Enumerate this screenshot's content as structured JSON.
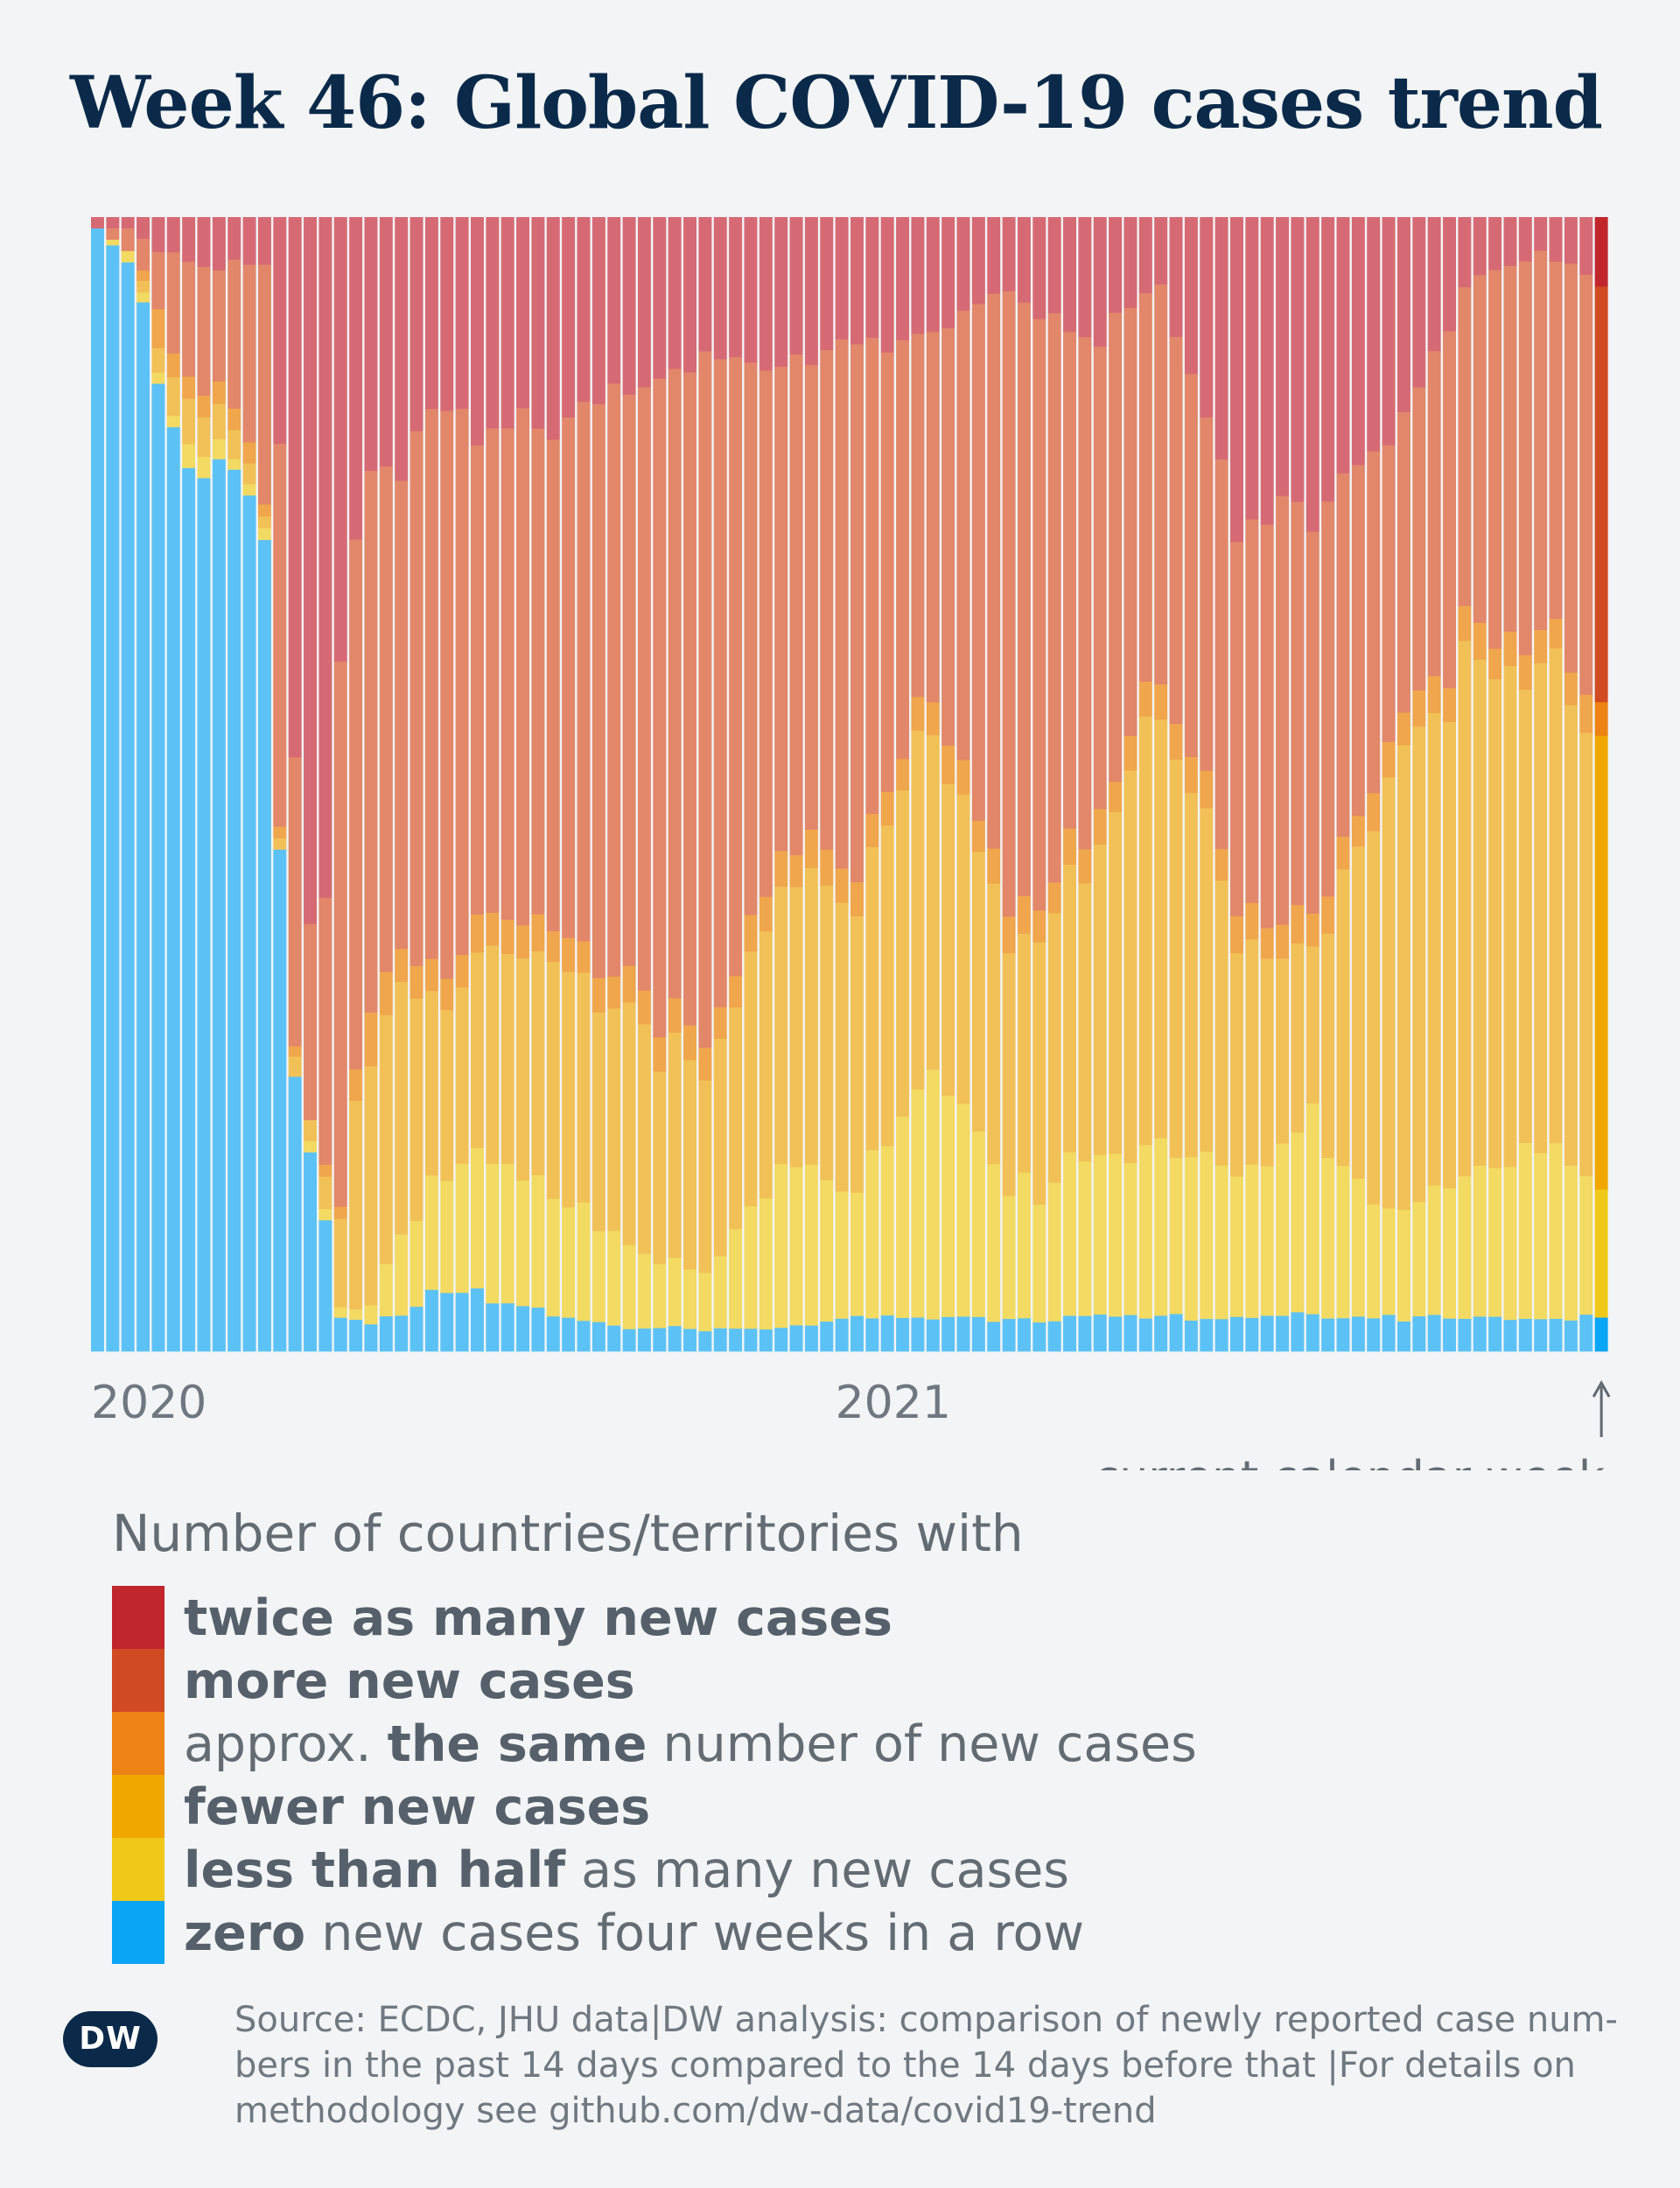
{
  "title": "Week 46: Global COVID-19 cases trend",
  "legend": {
    "heading": "Number of countries/territories with",
    "items": [
      {
        "key": "twice",
        "color": "#c0272d",
        "parts": [
          {
            "text": "twice as many new cases",
            "bold": true
          }
        ]
      },
      {
        "key": "more",
        "color": "#d04a22",
        "parts": [
          {
            "text": "more new cases",
            "bold": true
          }
        ]
      },
      {
        "key": "same",
        "color": "#ec8314",
        "parts": [
          {
            "text": "approx. ",
            "bold": false
          },
          {
            "text": "the same",
            "bold": true
          },
          {
            "text": " number of new cases",
            "bold": false
          }
        ]
      },
      {
        "key": "fewer",
        "color": "#f0a800",
        "parts": [
          {
            "text": "fewer new cases",
            "bold": true
          }
        ]
      },
      {
        "key": "less_half",
        "color": "#f0c81a",
        "parts": [
          {
            "text": "less than half",
            "bold": true
          },
          {
            "text": " as many new cases",
            "bold": false
          }
        ]
      },
      {
        "key": "zero",
        "color": "#0aa5f5",
        "parts": [
          {
            "text": "zero",
            "bold": true
          },
          {
            "text": " new cases four weeks in a row",
            "bold": false
          }
        ]
      }
    ]
  },
  "current_week_label": "current calendar week",
  "source": {
    "lines": [
      "Source: ECDC, JHU data|DW analysis: comparison of newly reported case num-",
      "bers in the past 14 days compared to the 14 days before that |For details on",
      "methodology see github.com/dw-data/covid19-trend"
    ]
  },
  "logo": "DW",
  "chart_data": {
    "type": "bar",
    "stacked": true,
    "normalized": true,
    "unit": "share of countries/territories (%)",
    "x_tick_labels": [
      {
        "label": "2020",
        "week_index": 0
      },
      {
        "label": "2021",
        "week_index": 49
      }
    ],
    "past_weeks_colors": {
      "twice": "#d66a74",
      "more": "#e2876a",
      "same": "#f0a64c",
      "fewer": "#f1c158",
      "less_half": "#f2da63",
      "zero": "#5cc2f5"
    },
    "current_week_colors": {
      "twice": "#c0272d",
      "more": "#d04a22",
      "same": "#ec8314",
      "fewer": "#f0a800",
      "less_half": "#f0c81a",
      "zero": "#0aa5f5"
    },
    "series_order": [
      "twice",
      "more",
      "same",
      "fewer",
      "less_half",
      "zero"
    ],
    "series_names": {
      "twice": "twice as many new cases",
      "more": "more new cases",
      "same": "approx. the same number of new cases",
      "fewer": "fewer new cases",
      "less_half": "less than half as many new cases",
      "zero": "zero new cases four weeks in a row"
    },
    "anchors": {
      "week": [
        0,
        2,
        3,
        4,
        5,
        6,
        7,
        8,
        9,
        10,
        11,
        12,
        13,
        14,
        15,
        16,
        17,
        18,
        20,
        22,
        25,
        30,
        35,
        40,
        45,
        50,
        55,
        60,
        65,
        70,
        75,
        80,
        85,
        90,
        95,
        100
      ],
      "twice": [
        1,
        1,
        2,
        3,
        3,
        4,
        5,
        5,
        4,
        4,
        4,
        22,
        45,
        58,
        60,
        37,
        31,
        25,
        23,
        16,
        20,
        18,
        15,
        12,
        13,
        12,
        10,
        7,
        12,
        6,
        28,
        26,
        21,
        6,
        3,
        7
      ],
      "more": [
        0,
        2,
        3,
        5,
        8,
        10,
        12,
        10,
        14,
        18,
        21,
        34,
        27,
        16,
        24,
        50,
        53,
        50,
        40,
        52,
        42,
        45,
        53,
        60,
        42,
        45,
        32,
        55,
        45,
        34,
        34,
        36,
        26,
        31,
        33,
        38
      ],
      "same": [
        0,
        0,
        1,
        3,
        2,
        2,
        2,
        2,
        2,
        2,
        1,
        1,
        1,
        0,
        1,
        1,
        3,
        5,
        3,
        3,
        3,
        3,
        3,
        3,
        3,
        3,
        3,
        3,
        3,
        3,
        3,
        3,
        3,
        3,
        3,
        3
      ],
      "fewer": [
        0,
        0,
        1,
        2,
        3,
        4,
        4,
        3,
        3,
        2,
        1,
        1,
        2,
        2,
        3,
        8,
        20,
        26,
        25,
        15,
        18,
        20,
        20,
        18,
        26,
        26,
        30,
        22,
        24,
        40,
        20,
        15,
        38,
        45,
        42,
        40
      ],
      "less_half": [
        0,
        1,
        1,
        1,
        1,
        2,
        2,
        2,
        1,
        1,
        1,
        0,
        0,
        1,
        1,
        1,
        1,
        2,
        7,
        9,
        12,
        11,
        7,
        5,
        14,
        12,
        23,
        11,
        14,
        15,
        13,
        17,
        9,
        12,
        17,
        10
      ],
      "zero": [
        99,
        96,
        92,
        86,
        83,
        78,
        75,
        78,
        76,
        73,
        72,
        42,
        25,
        18,
        11,
        3,
        3,
        3,
        3,
        5,
        5,
        3,
        2,
        2,
        2,
        3,
        3,
        3,
        3,
        3,
        3,
        3,
        3,
        3,
        3,
        3
      ]
    }
  }
}
